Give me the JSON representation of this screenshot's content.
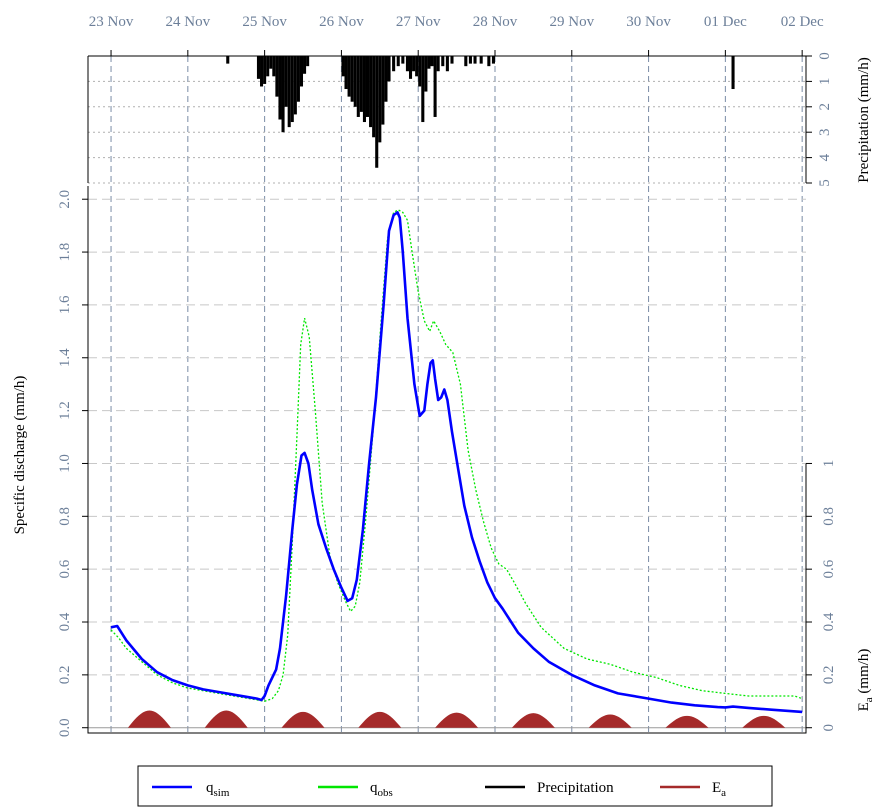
{
  "chart_data": {
    "type": "line",
    "x_dates": [
      "23 Nov",
      "24 Nov",
      "25 Nov",
      "26 Nov",
      "27 Nov",
      "28 Nov",
      "29 Nov",
      "30 Nov",
      "01 Dec",
      "02 Dec"
    ],
    "x_range_days": [
      -0.3,
      9.05
    ],
    "ylabel": "Specific discharge (mm/h)",
    "ylim": [
      -0.02,
      2.05
    ],
    "yticks": [
      "0.0",
      "0.2",
      "0.4",
      "0.6",
      "0.8",
      "1.0",
      "1.2",
      "1.4",
      "1.6",
      "1.8",
      "2.0"
    ],
    "precip_axis": {
      "label": "Precipitation (mm/h)",
      "reversed": true,
      "ylim": [
        0,
        5
      ],
      "ticks": [
        "0",
        "1",
        "2",
        "3",
        "4",
        "5"
      ]
    },
    "ea_axis": {
      "label": "E",
      "label_sub": "a",
      "label_unit": " (mm/h)",
      "ylim": [
        -0.02,
        2.05
      ],
      "ticks": [
        "0",
        "0.2",
        "0.4",
        "0.6",
        "0.8",
        "1"
      ]
    },
    "grid": true,
    "legend_position": "bottom",
    "colors": {
      "qsim": "#0000ff",
      "qobs": "#00e600",
      "precip": "#000000",
      "ea": "#a52a2a",
      "axis_text": "#6c7f99"
    },
    "series": [
      {
        "name": "q",
        "name_sub": "sim",
        "style": "solid",
        "x": [
          0.0,
          0.08,
          0.2,
          0.4,
          0.6,
          0.8,
          1.0,
          1.2,
          1.4,
          1.6,
          1.8,
          1.9,
          1.96,
          2.0,
          2.05,
          2.1,
          2.15,
          2.2,
          2.28,
          2.36,
          2.42,
          2.48,
          2.52,
          2.57,
          2.62,
          2.7,
          2.8,
          2.9,
          3.0,
          3.08,
          3.14,
          3.2,
          3.28,
          3.36,
          3.45,
          3.55,
          3.62,
          3.68,
          3.73,
          3.76,
          3.8,
          3.86,
          3.95,
          4.02,
          4.08,
          4.12,
          4.16,
          4.19,
          4.22,
          4.26,
          4.3,
          4.34,
          4.38,
          4.44,
          4.52,
          4.6,
          4.7,
          4.8,
          4.9,
          5.0,
          5.1,
          5.3,
          5.5,
          5.7,
          6.0,
          6.3,
          6.6,
          7.0,
          7.3,
          7.6,
          7.9,
          8.0,
          8.1,
          8.3,
          8.6,
          9.0
        ],
        "values": [
          0.38,
          0.385,
          0.33,
          0.26,
          0.21,
          0.18,
          0.16,
          0.145,
          0.135,
          0.125,
          0.115,
          0.11,
          0.105,
          0.12,
          0.16,
          0.19,
          0.22,
          0.3,
          0.5,
          0.75,
          0.92,
          1.03,
          1.04,
          1.0,
          0.9,
          0.77,
          0.68,
          0.6,
          0.53,
          0.48,
          0.49,
          0.56,
          0.75,
          1.0,
          1.25,
          1.6,
          1.88,
          1.94,
          1.95,
          1.93,
          1.8,
          1.55,
          1.3,
          1.18,
          1.2,
          1.3,
          1.38,
          1.39,
          1.32,
          1.24,
          1.25,
          1.28,
          1.24,
          1.12,
          0.98,
          0.84,
          0.72,
          0.63,
          0.55,
          0.49,
          0.45,
          0.36,
          0.3,
          0.25,
          0.2,
          0.16,
          0.13,
          0.11,
          0.095,
          0.085,
          0.078,
          0.077,
          0.08,
          0.075,
          0.068,
          0.06
        ]
      },
      {
        "name": "q",
        "name_sub": "obs",
        "style": "dotted",
        "x": [
          0.0,
          0.1,
          0.2,
          0.4,
          0.6,
          0.8,
          1.0,
          1.2,
          1.4,
          1.6,
          1.8,
          2.0,
          2.1,
          2.18,
          2.24,
          2.3,
          2.36,
          2.42,
          2.47,
          2.52,
          2.58,
          2.66,
          2.75,
          2.85,
          2.95,
          3.05,
          3.12,
          3.18,
          3.24,
          3.32,
          3.42,
          3.52,
          3.6,
          3.68,
          3.74,
          3.8,
          3.86,
          3.92,
          4.0,
          4.08,
          4.15,
          4.2,
          4.28,
          4.36,
          4.45,
          4.55,
          4.65,
          4.75,
          4.85,
          4.95,
          5.05,
          5.15,
          5.25,
          5.4,
          5.6,
          5.9,
          6.2,
          6.5,
          6.8,
          7.1,
          7.4,
          7.7,
          8.0,
          8.3,
          8.6,
          8.9,
          9.0
        ],
        "values": [
          0.37,
          0.34,
          0.3,
          0.25,
          0.2,
          0.17,
          0.15,
          0.14,
          0.13,
          0.12,
          0.11,
          0.1,
          0.11,
          0.14,
          0.2,
          0.35,
          0.7,
          1.1,
          1.45,
          1.55,
          1.48,
          1.2,
          0.85,
          0.65,
          0.55,
          0.48,
          0.44,
          0.46,
          0.55,
          0.8,
          1.15,
          1.55,
          1.85,
          1.95,
          1.96,
          1.95,
          1.92,
          1.8,
          1.65,
          1.54,
          1.5,
          1.54,
          1.5,
          1.45,
          1.42,
          1.3,
          1.05,
          0.9,
          0.78,
          0.68,
          0.62,
          0.6,
          0.55,
          0.47,
          0.38,
          0.3,
          0.26,
          0.24,
          0.21,
          0.19,
          0.16,
          0.14,
          0.13,
          0.12,
          0.12,
          0.12,
          0.11
        ]
      }
    ],
    "precipitation": {
      "name": "Precipitation",
      "bars": [
        [
          1.5,
          0.3
        ],
        [
          1.9,
          0.9
        ],
        [
          1.94,
          1.2
        ],
        [
          1.98,
          1.1
        ],
        [
          2.02,
          0.8
        ],
        [
          2.06,
          0.5
        ],
        [
          2.1,
          0.8
        ],
        [
          2.14,
          1.6
        ],
        [
          2.18,
          2.5
        ],
        [
          2.22,
          3.0
        ],
        [
          2.26,
          2.0
        ],
        [
          2.3,
          2.8
        ],
        [
          2.34,
          2.6
        ],
        [
          2.38,
          2.3
        ],
        [
          2.42,
          1.8
        ],
        [
          2.46,
          1.2
        ],
        [
          2.5,
          0.7
        ],
        [
          2.54,
          0.4
        ],
        [
          3.0,
          0.8
        ],
        [
          3.04,
          1.3
        ],
        [
          3.08,
          1.6
        ],
        [
          3.12,
          1.8
        ],
        [
          3.16,
          2.0
        ],
        [
          3.2,
          2.4
        ],
        [
          3.24,
          2.2
        ],
        [
          3.28,
          2.6
        ],
        [
          3.32,
          2.4
        ],
        [
          3.36,
          2.8
        ],
        [
          3.4,
          3.2
        ],
        [
          3.44,
          4.4
        ],
        [
          3.48,
          3.4
        ],
        [
          3.52,
          2.7
        ],
        [
          3.56,
          1.8
        ],
        [
          3.6,
          1.0
        ],
        [
          3.66,
          0.6
        ],
        [
          3.72,
          0.4
        ],
        [
          3.78,
          0.3
        ],
        [
          3.84,
          0.6
        ],
        [
          3.88,
          0.9
        ],
        [
          3.92,
          0.6
        ],
        [
          3.96,
          0.8
        ],
        [
          4.0,
          1.2
        ],
        [
          4.04,
          2.6
        ],
        [
          4.08,
          1.4
        ],
        [
          4.12,
          0.5
        ],
        [
          4.16,
          0.4
        ],
        [
          4.2,
          2.4
        ],
        [
          4.24,
          0.6
        ],
        [
          4.3,
          0.4
        ],
        [
          4.36,
          0.6
        ],
        [
          4.42,
          0.3
        ],
        [
          4.6,
          0.4
        ],
        [
          4.66,
          0.3
        ],
        [
          4.72,
          0.3
        ],
        [
          4.8,
          0.3
        ],
        [
          4.9,
          0.4
        ],
        [
          4.96,
          0.3
        ],
        [
          8.08,
          1.3
        ]
      ]
    },
    "evaporation": {
      "name": "E",
      "name_sub": "a",
      "peaks": [
        0.5,
        1.5,
        2.5,
        3.5,
        4.5,
        5.5,
        6.5,
        7.5,
        8.5
      ],
      "peak_values": [
        0.065,
        0.065,
        0.06,
        0.06,
        0.057,
        0.055,
        0.05,
        0.045,
        0.045
      ]
    }
  }
}
